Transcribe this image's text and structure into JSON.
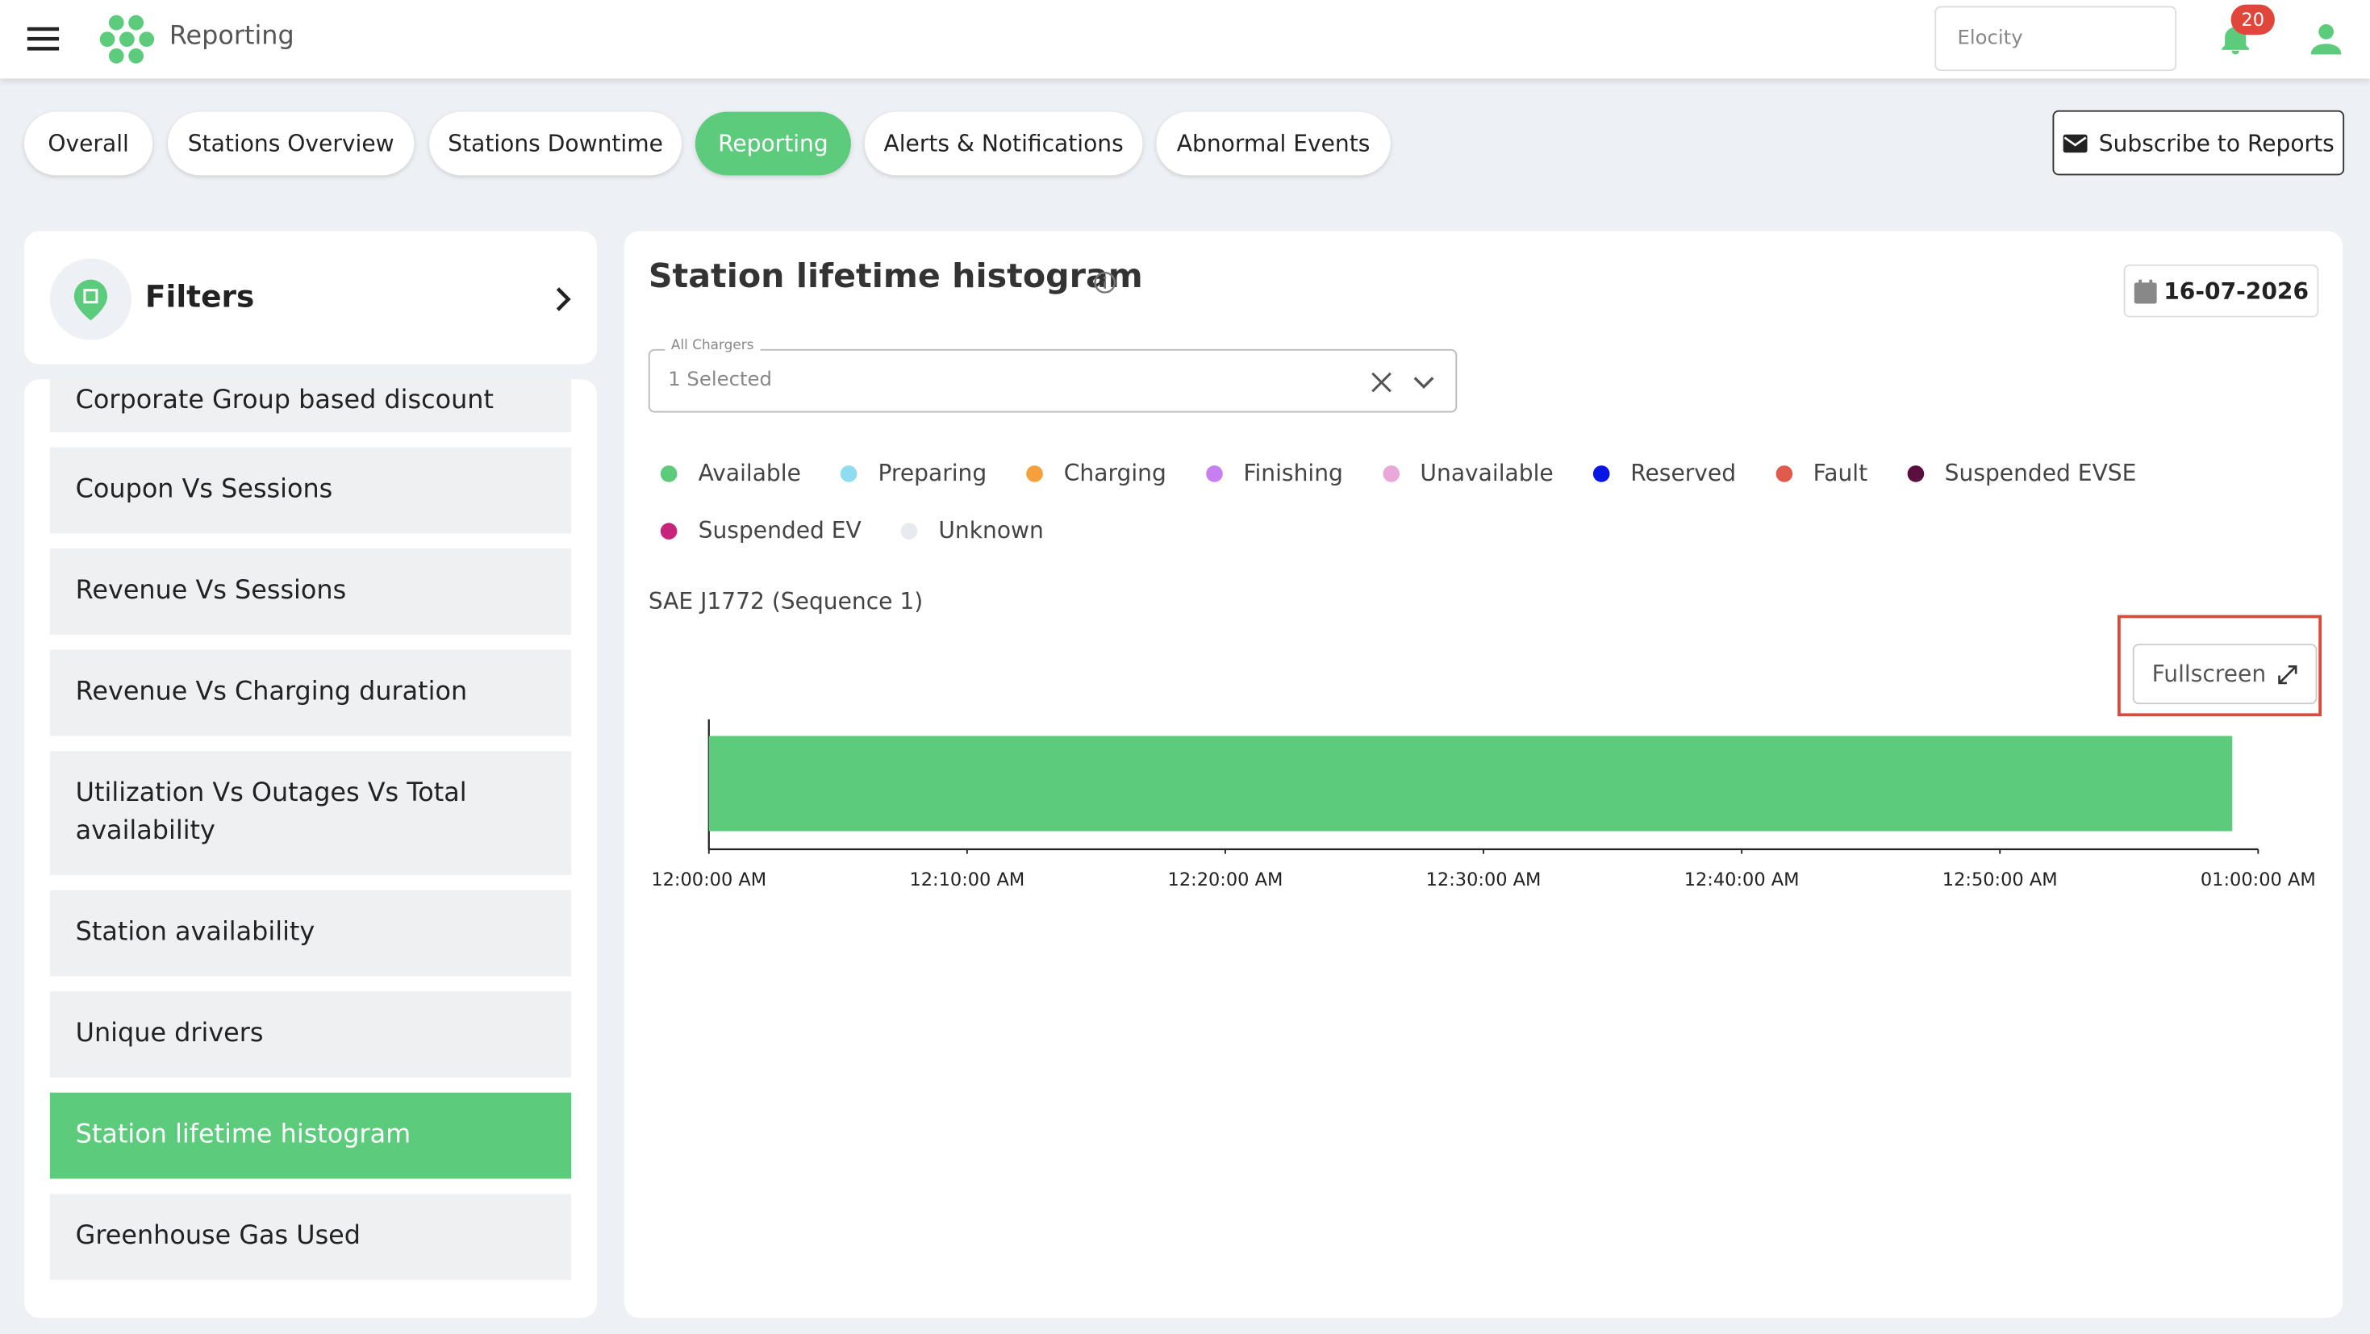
{
  "header": {
    "title": "Reporting",
    "search_placeholder": "Elocity",
    "notification_count": 20
  },
  "tabs": {
    "items": [
      "Overall",
      "Stations Overview",
      "Stations Downtime",
      "Reporting",
      "Alerts & Notifications",
      "Abnormal Events"
    ],
    "active": 3
  },
  "subscribe_button": "Subscribe to Reports",
  "sidebar": {
    "title": "Filters",
    "items": [
      "Corporate Group based discount",
      "Coupon Vs Sessions",
      "Revenue Vs Sessions",
      "Revenue Vs Charging duration",
      "Utilization Vs Outages Vs Total availability",
      "Station availability",
      "Unique drivers",
      "Station lifetime histogram",
      "Greenhouse Gas Used"
    ],
    "active": 7
  },
  "panel": {
    "date": "16-07-2026",
    "select": {
      "label": "All Chargers",
      "value": "1 Selected"
    },
    "fullscreen": "Fullscreen"
  },
  "chart_data": {
    "type": "timeline",
    "title": "Station lifetime histogram",
    "subtitle": "SAE J1772 (Sequence 1)",
    "series": [
      {
        "name": "Available",
        "color": "#5ccb7c",
        "intervals": [
          [
            0,
            59
          ]
        ]
      },
      {
        "name": "Preparing",
        "color": "#8fdcf0"
      },
      {
        "name": "Charging",
        "color": "#f5a03c"
      },
      {
        "name": "Finishing",
        "color": "#c77ef0"
      },
      {
        "name": "Unavailable",
        "color": "#e8a8d8"
      },
      {
        "name": "Reserved",
        "color": "#0a14e6"
      },
      {
        "name": "Fault",
        "color": "#e05b4c"
      },
      {
        "name": "Suspended EVSE",
        "color": "#5a0f3e"
      },
      {
        "name": "Suspended EV",
        "color": "#c7257a"
      },
      {
        "name": "Unknown",
        "color": "#e8eaef"
      }
    ],
    "xlim": [
      0,
      60
    ],
    "xticks": [
      {
        "value": 0,
        "label": "12:00:00 AM"
      },
      {
        "value": 10,
        "label": "12:10:00 AM"
      },
      {
        "value": 20,
        "label": "12:20:00 AM"
      },
      {
        "value": 30,
        "label": "12:30:00 AM"
      },
      {
        "value": 40,
        "label": "12:40:00 AM"
      },
      {
        "value": 50,
        "label": "12:50:00 AM"
      },
      {
        "value": 60,
        "label": "01:00:00 AM"
      }
    ]
  }
}
